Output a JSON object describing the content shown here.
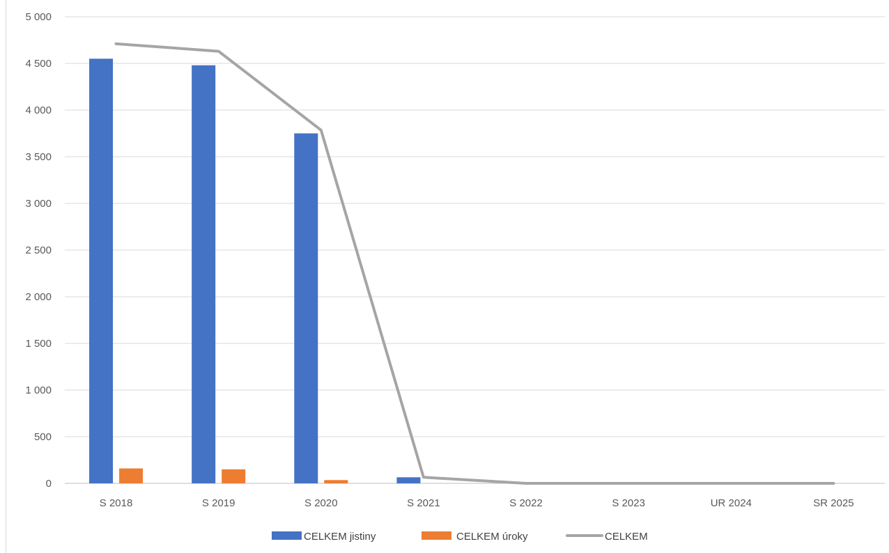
{
  "chart_data": {
    "type": "bar",
    "title": "",
    "xlabel": "",
    "ylabel": "",
    "ylim": [
      0,
      5000
    ],
    "yticks": [
      0,
      500,
      1000,
      1500,
      2000,
      2500,
      3000,
      3500,
      4000,
      4500,
      5000
    ],
    "ytick_labels": [
      "0",
      "500",
      "1 000",
      "1 500",
      "2 000",
      "2 500",
      "3 000",
      "3 500",
      "4 000",
      "4 500",
      "5 000"
    ],
    "grid": true,
    "legend_position": "bottom",
    "categories": [
      "S 2018",
      "S 2019",
      "S 2020",
      "S 2021",
      "S 2022",
      "S 2023",
      "UR 2024",
      "SR 2025"
    ],
    "series": [
      {
        "name": "CELKEM jistiny",
        "kind": "bar",
        "color": "#4472C4",
        "values": [
          4550,
          4480,
          3750,
          65,
          0,
          0,
          0,
          0
        ]
      },
      {
        "name": "CELKEM úroky",
        "kind": "bar",
        "color": "#ED7D31",
        "values": [
          160,
          150,
          35,
          0,
          0,
          0,
          0,
          0
        ]
      },
      {
        "name": "CELKEM",
        "kind": "line",
        "color": "#A5A5A5",
        "values": [
          4710,
          4630,
          3785,
          65,
          0,
          0,
          0,
          0
        ]
      }
    ]
  }
}
